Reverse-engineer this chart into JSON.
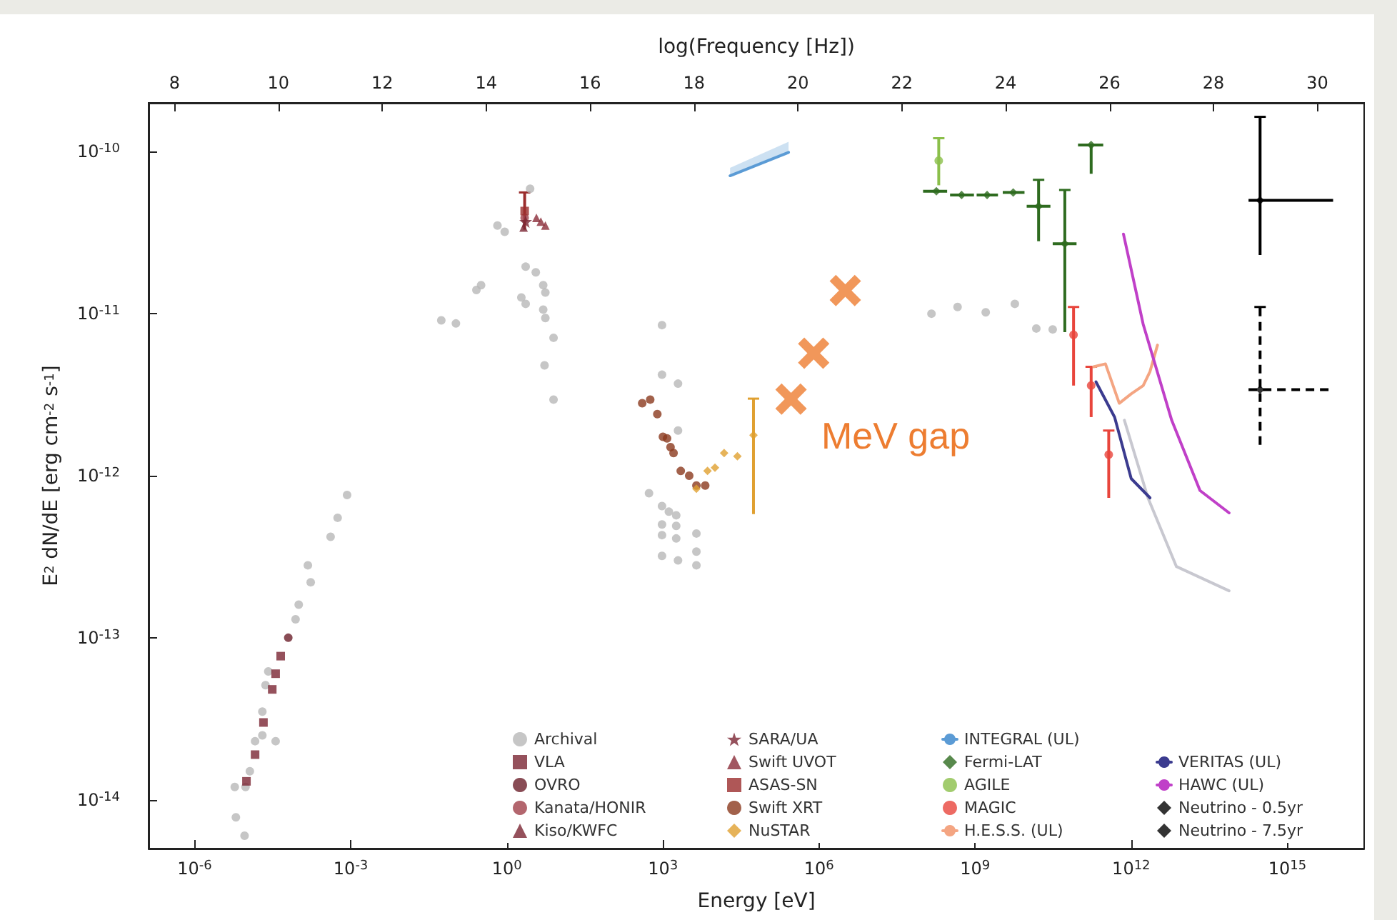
{
  "chart_data": {
    "type": "scatter",
    "xlabel": "Energy [eV]",
    "ylabel": "E$^{2}$ dN/dE [erg cm$^{-2}$ s$^{-1}$]",
    "x2label": "log(Frequency [Hz])",
    "log": "xy",
    "legend": "bottom right",
    "xlim": [
      1.3e-07,
      3e+16
    ],
    "ylim": [
      5e-15,
      2e-10
    ],
    "x2lim": [
      7.5,
      30.9
    ],
    "xticks": [
      {
        "value": 1e-06,
        "label": "10$^{-6}$"
      },
      {
        "value": 0.001,
        "label": "10$^{-3}$"
      },
      {
        "value": 1,
        "label": "10$^{0}$"
      },
      {
        "value": 1000.0,
        "label": "10$^{3}$"
      },
      {
        "value": 1000000.0,
        "label": "10$^{6}$"
      },
      {
        "value": 1000000000.0,
        "label": "10$^{9}$"
      },
      {
        "value": 1000000000000.0,
        "label": "10$^{12}$"
      },
      {
        "value": 1000000000000000.0,
        "label": "10$^{15}$"
      }
    ],
    "yticks": [
      {
        "value": 1e-14,
        "label": "10$^{-14}$"
      },
      {
        "value": 1e-13,
        "label": "10$^{-13}$"
      },
      {
        "value": 1e-12,
        "label": "10$^{-12}$"
      },
      {
        "value": 1e-11,
        "label": "10$^{-11}$"
      },
      {
        "value": 1e-10,
        "label": "10$^{-10}$"
      }
    ],
    "x2ticks": [
      8,
      10,
      12,
      14,
      16,
      18,
      20,
      22,
      24,
      26,
      28,
      30
    ],
    "annotations": [
      "MeV gap"
    ],
    "series": [
      {
        "name": "Archival",
        "color": "#b8b8b8",
        "marker": "circle",
        "x": [
          5.9e-06,
          6.2e-06,
          9.1e-06,
          9.5e-06,
          1.15e-05,
          1.45e-05,
          2e-05,
          2e-05,
          2.3e-05,
          2.6e-05,
          3.6e-05,
          6.3e-05,
          8.7e-05,
          0.0001,
          0.00015,
          0.00017,
          0.00041,
          0.00056,
          0.00085,
          0.055,
          0.105,
          2.8,
          0.66,
          0.91,
          2.3,
          3.6,
          0.32,
          0.26,
          5.0,
          5.5,
          1.9,
          2.3,
          5.0,
          5.5,
          7.9,
          5.3,
          7.9,
          960,
          960,
          1950,
          1950,
          540,
          960,
          1300,
          1800,
          960,
          1800,
          960,
          4400,
          1800,
          960,
          1950,
          4400,
          4400,
          145000000.0,
          460000000.0,
          1600000000.0,
          5800000000.0,
          15000000000.0,
          31000000000.0
        ],
        "values": [
          1.2e-14,
          7.8e-15,
          6e-15,
          1.2e-14,
          1.5e-14,
          2.3e-14,
          2.5e-14,
          3.5e-14,
          5.1e-14,
          6.2e-14,
          2.3e-14,
          null,
          1.3e-13,
          1.6e-13,
          2.8e-13,
          2.2e-13,
          4.2e-13,
          5.5e-13,
          7.6e-13,
          9.1e-12,
          8.7e-12,
          5.9e-11,
          3.5e-11,
          3.2e-11,
          1.95e-11,
          1.8e-11,
          1.5e-11,
          1.4e-11,
          1.5e-11,
          1.35e-11,
          1.26e-11,
          1.15e-11,
          1.06e-11,
          9.4e-12,
          7.1e-12,
          4.8e-12,
          2.95e-12,
          8.5e-12,
          4.2e-12,
          3.7e-12,
          1.9e-12,
          7.8e-13,
          6.5e-13,
          6e-13,
          5.7e-13,
          5e-13,
          4.9e-13,
          4.3e-13,
          4.4e-13,
          4.1e-13,
          3.2e-13,
          3e-13,
          3.4e-13,
          2.8e-13,
          1e-11,
          1.1e-11,
          1.02e-11,
          1.15e-11,
          8.1e-12,
          8e-12
        ]
      },
      {
        "name": "VLA",
        "color": "#7b2633",
        "marker": "square",
        "x": [
          9.9e-06,
          1.45e-05,
          2.1e-05,
          3.1e-05,
          3.6e-05,
          4.5e-05
        ],
        "values": [
          1.3e-14,
          1.9e-14,
          3e-14,
          4.8e-14,
          6e-14,
          7.7e-14
        ]
      },
      {
        "name": "OVRO",
        "color": "#6b1f2a",
        "marker": "circle",
        "x": [
          6.3e-05
        ],
        "values": [
          1e-13
        ]
      },
      {
        "name": "Kanata/HONIR",
        "color": "#a0404a",
        "marker": "circle",
        "x": [
          2.2
        ],
        "values": [
          3.9e-11
        ]
      },
      {
        "name": "Kiso/KWFC",
        "color": "#7b2633",
        "marker": "triangle",
        "x": [
          2.1
        ],
        "values": [
          3.4e-11
        ]
      },
      {
        "name": "SARA/UA",
        "color": "#7b2633",
        "marker": "star",
        "x": [
          2.3
        ],
        "values": [
          3.7e-11
        ]
      },
      {
        "name": "Swift UVOT",
        "color": "#8b2d3a",
        "marker": "triangle",
        "x": [
          3.7,
          4.5,
          5.5
        ],
        "values": [
          3.9e-11,
          3.7e-11,
          3.5e-11
        ]
      },
      {
        "name": "ASAS-SN",
        "color": "#9b2d2d",
        "marker": "square",
        "x": [
          2.2
        ],
        "values": [
          4.3e-11
        ],
        "errors": [
          [
            3.3e-11,
            5.6e-11
          ]
        ]
      },
      {
        "name": "Swift XRT",
        "color": "#8b3a1e",
        "marker": "circle",
        "x": [
          400,
          570,
          780,
          1000,
          1200,
          1400,
          1600,
          2200,
          3200,
          4400,
          6500
        ],
        "values": [
          2.8e-12,
          2.95e-12,
          2.4e-12,
          1.74e-12,
          1.7e-12,
          1.5e-12,
          1.38e-12,
          1.07e-12,
          1e-12,
          8.7e-13,
          8.7e-13
        ]
      },
      {
        "name": "NuSTAR",
        "color": "#e0a030",
        "marker": "diamond",
        "x": [
          4400,
          7200,
          10000.0,
          15000.0,
          27000.0,
          55000.0
        ],
        "values": [
          8.3e-13,
          1.07e-12,
          1.12e-12,
          1.38e-12,
          1.32e-12,
          1.78e-12
        ],
        "errors": [
          null,
          null,
          null,
          null,
          null,
          [
            5.8e-13,
            2.99e-12
          ]
        ]
      },
      {
        "name": "INTEGRAL (UL)",
        "type": "line",
        "color": "#5b9bd5",
        "x": [
          19500.0,
          260000.0
        ],
        "values": [
          7.1e-11,
          9.9e-11
        ],
        "lower": [
          7.1e-11,
          9.9e-11
        ],
        "upper": [
          7.95e-11,
          1.15e-10
        ]
      },
      {
        "name": "Fermi-LAT",
        "color": "#2e6b1f",
        "marker": "diamond",
        "x": [
          180000000.0,
          550000000.0,
          1700000000.0,
          5400000000.0,
          16600000000.0,
          53000000000.0,
          170000000000.0
        ],
        "values": [
          5.7e-11,
          5.4e-11,
          5.4e-11,
          5.6e-11,
          4.6e-11,
          2.7e-11,
          1.1e-10
        ],
        "errors": [
          null,
          null,
          null,
          null,
          [
            2.8e-11,
            6.7e-11
          ],
          [
            7.7e-12,
            5.8e-11
          ],
          [
            7.3e-11,
            1.1e-10
          ]
        ],
        "xerrors": [
          [
            100000000.0,
            290000000.0
          ],
          [
            330000000.0,
            950000000.0
          ],
          [
            1070000000.0,
            2750000000.0
          ],
          [
            3400000000.0,
            8900000000.0
          ],
          [
            9800000000.0,
            28000000000.0
          ],
          [
            31000000000.0,
            89000000000.0
          ],
          [
            95000000000.0,
            290000000000.0
          ]
        ]
      },
      {
        "name": "AGILE",
        "color": "#8bbf4a",
        "marker": "circle",
        "x": [
          200000000.0
        ],
        "values": [
          8.8e-11
        ],
        "errors": [
          [
            6.2e-11,
            1.21e-10
          ]
        ]
      },
      {
        "name": "MAGIC",
        "color": "#e8453c",
        "marker": "circle",
        "x": [
          78000000000.0,
          170000000000.0,
          370000000000.0
        ],
        "values": [
          7.4e-12,
          3.6e-12,
          1.35e-12
        ],
        "errors": [
          [
            3.6e-12,
            1.1e-11
          ],
          [
            2.3e-12,
            4.7e-12
          ],
          [
            7.3e-13,
            1.9e-12
          ]
        ]
      },
      {
        "name": "H.E.S.S. (UL)",
        "type": "line",
        "color": "#f4a582",
        "x": [
          190000000000.0,
          320000000000.0,
          590000000000.0,
          1000000000000.0,
          1700000000000.0,
          2300000000000.0,
          3200000000000.0
        ],
        "values": [
          4.7e-12,
          4.9e-12,
          2.8e-12,
          3.2e-12,
          3.6e-12,
          4.4e-12,
          6.4e-12
        ]
      },
      {
        "type": "line",
        "color": "#c8c8d0",
        "x": [
          740000000000.0,
          2100000000000.0,
          7400000000000.0,
          76000000000000.0
        ],
        "values": [
          2.2e-12,
          7.3e-13,
          2.75e-13,
          1.95e-13
        ]
      },
      {
        "name": "VERITAS (UL)",
        "type": "line",
        "color": "#3b3b8f",
        "x": [
          210000000000.0,
          480000000000.0,
          1000000000000.0,
          2300000000000.0
        ],
        "values": [
          3.8e-12,
          2.3e-12,
          9.6e-13,
          7.3e-13
        ]
      },
      {
        "name": "HAWC (UL)",
        "type": "line",
        "color": "#c040c8",
        "x": [
          710000000000.0,
          1700000000000.0,
          6000000000000.0,
          21000000000000.0,
          76000000000000.0
        ],
        "values": [
          3.1e-11,
          8.6e-12,
          2.2e-12,
          8.1e-13,
          5.9e-13
        ]
      },
      {
        "name": "Neutrino - 0.5yr",
        "color": "#000000",
        "marker": "diamond",
        "line_style": "solid",
        "x": [
          300000000000000.0
        ],
        "values": [
          5e-11
        ],
        "errors": [
          [
            2.3e-11,
            1.64e-10
          ]
        ],
        "xerrors": [
          [
            180000000000000.0,
            7600000000000000.0
          ]
        ]
      },
      {
        "name": "Neutrino - 7.5yr",
        "color": "#000000",
        "marker": "diamond",
        "line_style": "dashed",
        "x": [
          300000000000000.0
        ],
        "values": [
          3.4e-12
        ],
        "errors": [
          [
            1.55e-12,
            1.1e-11
          ]
        ],
        "xerrors": [
          [
            180000000000000.0,
            6300000000000000.0
          ]
        ]
      },
      {
        "color": "#ed7d31",
        "marker": "cross",
        "x": [
          290000.0,
          790000.0,
          3200000.0
        ],
        "values": [
          2.97e-12,
          5.7e-12,
          1.39e-11
        ]
      }
    ]
  }
}
